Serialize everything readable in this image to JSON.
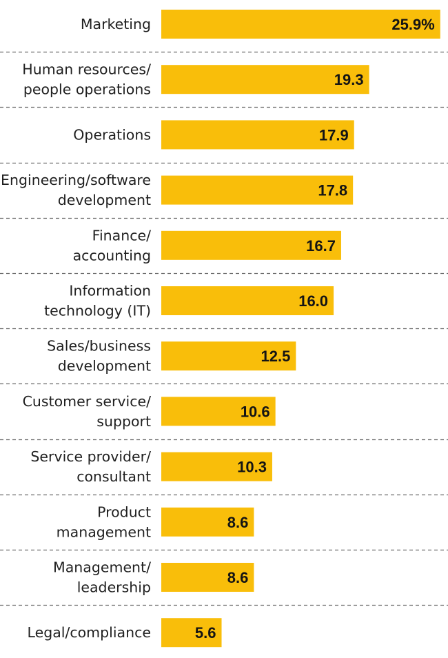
{
  "chart_data": {
    "type": "bar",
    "orientation": "horizontal",
    "bar_color": "#F9BE0A",
    "categories": [
      [
        "Marketing"
      ],
      [
        "Human resources/",
        "people operations"
      ],
      [
        "Operations"
      ],
      [
        "Engineering/software",
        "development"
      ],
      [
        "Finance/",
        "accounting"
      ],
      [
        "Information",
        "technology (IT)"
      ],
      [
        "Sales/business",
        "development"
      ],
      [
        "Customer service/",
        "support"
      ],
      [
        "Service provider/",
        "consultant"
      ],
      [
        "Product",
        "management"
      ],
      [
        "Management/",
        "leadership"
      ],
      [
        "Legal/compliance"
      ]
    ],
    "values": [
      25.9,
      19.3,
      17.9,
      17.8,
      16.7,
      16.0,
      12.5,
      10.6,
      10.3,
      8.6,
      8.6,
      5.6
    ],
    "value_labels": [
      "25.9%",
      "19.3",
      "17.9",
      "17.8",
      "16.7",
      "16.0",
      "12.5",
      "10.6",
      "10.3",
      "8.6",
      "8.6",
      "5.6"
    ],
    "xlim": [
      0,
      26.3
    ],
    "grid": false,
    "title": "",
    "xlabel": "",
    "ylabel": ""
  }
}
